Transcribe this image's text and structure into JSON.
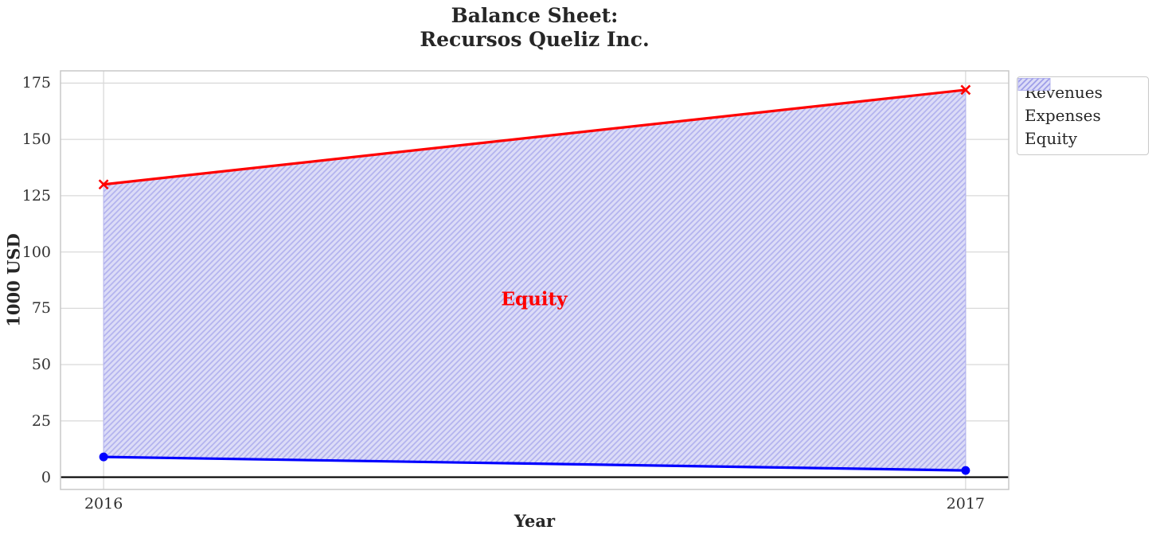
{
  "chart_data": {
    "type": "line",
    "title_line1": "Balance Sheet:",
    "title_line2": "Recursos Queliz Inc.",
    "xlabel": "Year",
    "ylabel": "1000 USD",
    "x": [
      2016,
      2017
    ],
    "xtick_labels": [
      "2016",
      "2017"
    ],
    "yticks": [
      0,
      25,
      50,
      75,
      100,
      125,
      150,
      175
    ],
    "xlim": [
      2015.95,
      2017.05
    ],
    "ylim": [
      -5.45,
      180.45
    ],
    "grid": true,
    "series": [
      {
        "name": "Revenues",
        "values": [
          9,
          3
        ],
        "color": "#0000ff",
        "marker": "circle"
      },
      {
        "name": "Expenses",
        "values": [
          130,
          172
        ],
        "color": "#ff0000",
        "marker": "x"
      }
    ],
    "fill_between": {
      "label": "Equity",
      "between": [
        "Revenues",
        "Expenses"
      ],
      "base_color": "#dcdcf7",
      "hatch_color": "#b3b3ee",
      "hatch": "diagonal"
    },
    "annotation": {
      "text": "Equity",
      "color": "#ff0000"
    },
    "zero_line": {
      "y": 0,
      "color": "#000000"
    },
    "legend": {
      "position": "upper-right-outside"
    }
  },
  "style_colors": {
    "grid": "#d9d9d9",
    "spine": "#c8c8c8",
    "tick_text": "#303030",
    "title_text": "#262626"
  }
}
